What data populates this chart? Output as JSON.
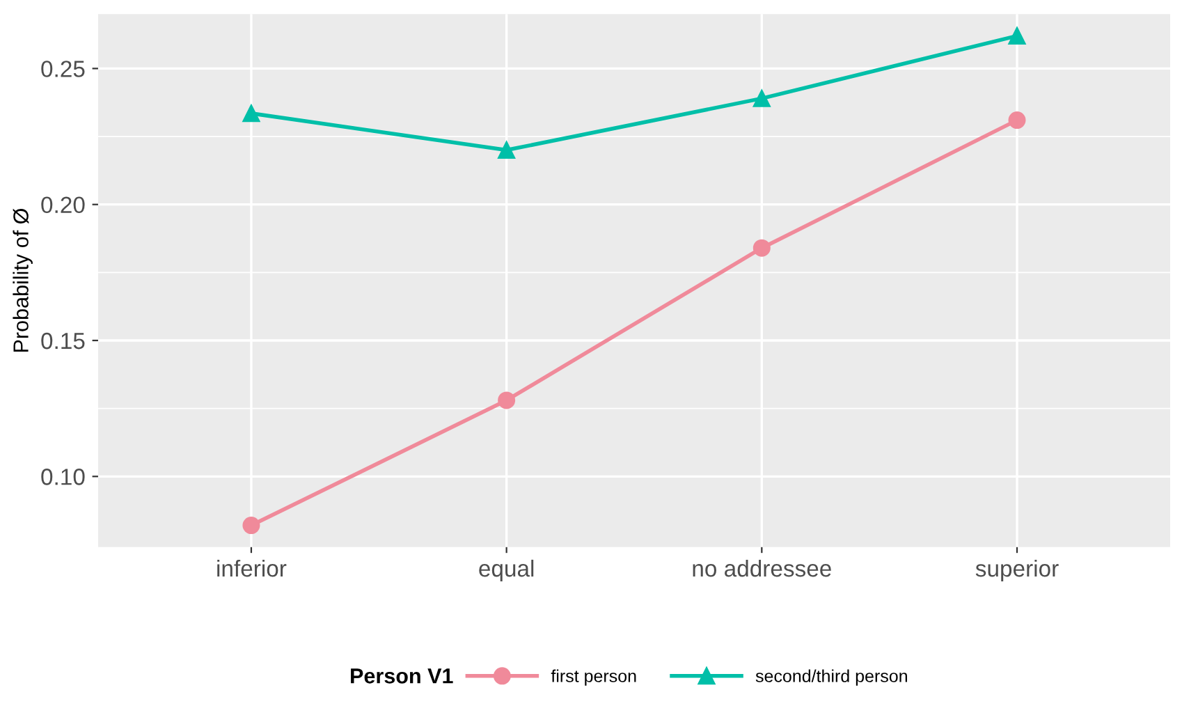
{
  "chart_data": {
    "type": "line",
    "ylabel": "Probability of Ø",
    "legend_title": "Person V1",
    "categories": [
      "inferior",
      "equal",
      "no addressee",
      "superior"
    ],
    "series": [
      {
        "name": "first person",
        "color": "#f08a9a",
        "marker": "circle",
        "values": [
          0.082,
          0.128,
          0.184,
          0.231
        ]
      },
      {
        "name": "second/third person",
        "color": "#00bfa8",
        "marker": "triangle",
        "values": [
          0.2335,
          0.22,
          0.239,
          0.262
        ]
      }
    ],
    "ylim": [
      0.074,
      0.27
    ],
    "yticks": [
      {
        "value": 0.1,
        "label": "0.10"
      },
      0.15,
      {
        "value": 0.2,
        "label": "0.20"
      },
      0.25
    ],
    "grid": true,
    "legend": "bottom"
  }
}
